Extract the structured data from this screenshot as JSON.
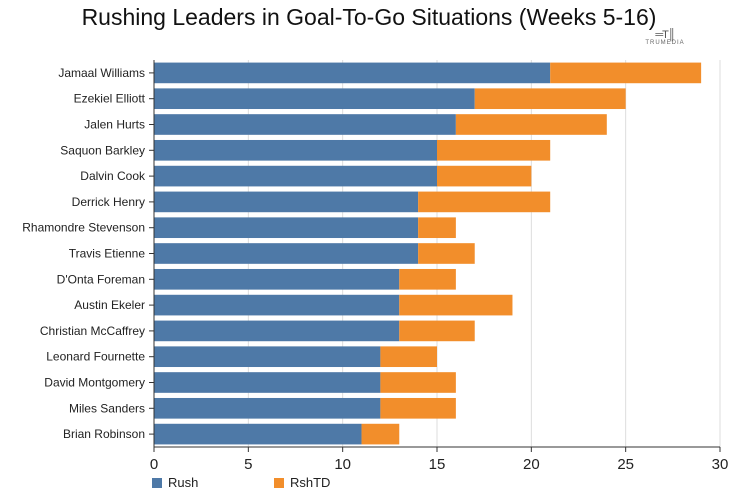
{
  "chart_data": {
    "type": "bar",
    "orientation": "horizontal",
    "stacked": true,
    "title": "Rushing Leaders in Goal-To-Go Situations (Weeks 5-16)",
    "categories": [
      "Jamaal Williams",
      "Ezekiel Elliott",
      "Jalen Hurts",
      "Saquon Barkley",
      "Dalvin Cook",
      "Derrick Henry",
      "Rhamondre Stevenson",
      "Travis Etienne",
      "D'Onta Foreman",
      "Austin Ekeler",
      "Christian McCaffrey",
      "Leonard Fournette",
      "David Montgomery",
      "Miles Sanders",
      "Brian Robinson"
    ],
    "series": [
      {
        "name": "Rush",
        "color": "#4e79a7",
        "values": [
          21,
          17,
          16,
          15,
          15,
          14,
          14,
          14,
          13,
          13,
          13,
          12,
          12,
          12,
          11
        ]
      },
      {
        "name": "RshTD",
        "color": "#f28e2b",
        "values": [
          8,
          8,
          8,
          6,
          5,
          7,
          2,
          3,
          3,
          6,
          4,
          3,
          4,
          4,
          2
        ]
      }
    ],
    "xlim": [
      0,
      30
    ],
    "xticks": [
      "0",
      "5",
      "10",
      "15",
      "20",
      "25",
      "30"
    ],
    "grid": true,
    "legend_position": "bottom-left"
  },
  "logo": {
    "mark": "═T║",
    "text": "TRUMEDIA"
  }
}
